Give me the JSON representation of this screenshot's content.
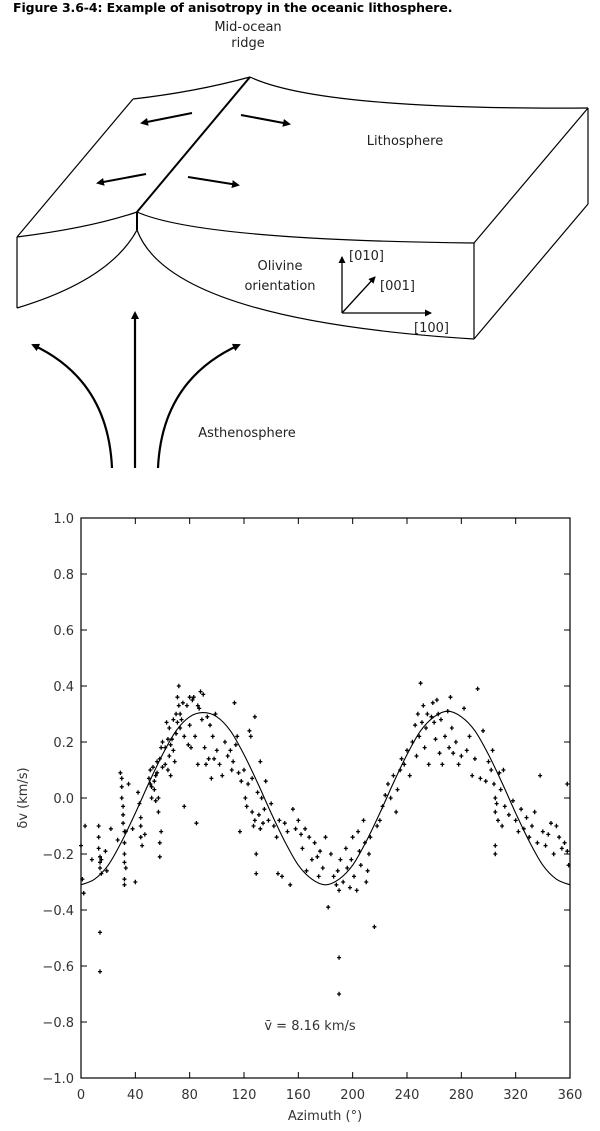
{
  "figure_title": "Figure 3.6-4: Example of anisotropy in the oceanic lithosphere.",
  "diagram": {
    "ridge_label": [
      "Mid-ocean",
      "ridge"
    ],
    "lithosphere_label": "Lithosphere",
    "olivine_label": [
      "Olivine",
      "orientation"
    ],
    "axis_010": "[010]",
    "axis_001": "[001]",
    "axis_100": "[100]",
    "asthenosphere_label": "Asthenosphere"
  },
  "chart_data": {
    "type": "scatter",
    "title": "",
    "xlabel": "Azimuth (°)",
    "ylabel": "δv (km/s)",
    "xlim": [
      0,
      360
    ],
    "ylim": [
      -1.0,
      1.0
    ],
    "xticks": [
      "0",
      "40",
      "80",
      "120",
      "160",
      "200",
      "240",
      "280",
      "320",
      "360"
    ],
    "yticks": [
      "1.0",
      "0.8",
      "0.6",
      "0.4",
      "0.2",
      "0.0",
      "−0.2",
      "−0.4",
      "−0.6",
      "−0.8",
      "−1.0"
    ],
    "annotation": "v̄ = 8.16 km/s",
    "grid": false,
    "fit_curve": {
      "x": [
        0,
        10,
        20,
        30,
        40,
        50,
        60,
        70,
        80,
        90,
        100,
        110,
        120,
        130,
        140,
        150,
        160,
        170,
        180,
        190,
        200,
        210,
        220,
        230,
        240,
        250,
        260,
        270,
        280,
        290,
        300,
        310,
        320,
        330,
        340,
        350,
        360
      ],
      "y": [
        -0.31,
        -0.29,
        -0.24,
        -0.155,
        -0.054,
        0.054,
        0.155,
        0.24,
        0.29,
        0.305,
        0.29,
        0.24,
        0.155,
        0.054,
        -0.054,
        -0.155,
        -0.24,
        -0.29,
        -0.31,
        -0.29,
        -0.24,
        -0.155,
        -0.054,
        0.054,
        0.155,
        0.24,
        0.29,
        0.31,
        0.29,
        0.24,
        0.155,
        0.054,
        -0.054,
        -0.155,
        -0.24,
        -0.29,
        -0.31
      ]
    },
    "points": [
      [
        1,
        -0.29
      ],
      [
        2,
        -0.34
      ],
      [
        3,
        -0.1
      ],
      [
        0,
        -0.17
      ],
      [
        8,
        -0.22
      ],
      [
        13,
        -0.1
      ],
      [
        13,
        -0.14
      ],
      [
        13,
        -0.18
      ],
      [
        14,
        -0.21
      ],
      [
        14,
        -0.23
      ],
      [
        14,
        -0.25
      ],
      [
        15,
        -0.27
      ],
      [
        15,
        -0.22
      ],
      [
        18,
        -0.19
      ],
      [
        19,
        -0.26
      ],
      [
        14,
        -0.48
      ],
      [
        14,
        -0.62
      ],
      [
        22,
        -0.11
      ],
      [
        27,
        -0.15
      ],
      [
        29,
        0.09
      ],
      [
        30,
        0.07
      ],
      [
        30,
        0.04
      ],
      [
        30,
        0.0
      ],
      [
        31,
        -0.03
      ],
      [
        31,
        -0.06
      ],
      [
        31,
        -0.09
      ],
      [
        32,
        -0.12
      ],
      [
        32,
        -0.16
      ],
      [
        32,
        -0.2
      ],
      [
        32,
        -0.23
      ],
      [
        33,
        -0.25
      ],
      [
        32,
        -0.29
      ],
      [
        32,
        -0.31
      ],
      [
        33,
        -0.12
      ],
      [
        35,
        0.05
      ],
      [
        38,
        -0.11
      ],
      [
        40,
        -0.3
      ],
      [
        42,
        0.02
      ],
      [
        43,
        -0.02
      ],
      [
        44,
        -0.07
      ],
      [
        44,
        -0.1
      ],
      [
        44,
        -0.14
      ],
      [
        45,
        -0.17
      ],
      [
        47,
        -0.13
      ],
      [
        50,
        0.07
      ],
      [
        51,
        0.1
      ],
      [
        51,
        0.05
      ],
      [
        52,
        0.04
      ],
      [
        52,
        0.0
      ],
      [
        53,
        0.11
      ],
      [
        54,
        0.06
      ],
      [
        54,
        0.03
      ],
      [
        55,
        0.08
      ],
      [
        55,
        -0.01
      ],
      [
        56,
        0.13
      ],
      [
        56,
        0.09
      ],
      [
        57,
        0.0
      ],
      [
        57,
        -0.05
      ],
      [
        58,
        -0.16
      ],
      [
        58,
        -0.21
      ],
      [
        58,
        0.14
      ],
      [
        59,
        0.18
      ],
      [
        60,
        0.2
      ],
      [
        60,
        0.11
      ],
      [
        59,
        -0.12
      ],
      [
        62,
        0.12
      ],
      [
        62,
        0.18
      ],
      [
        63,
        0.27
      ],
      [
        64,
        0.21
      ],
      [
        64,
        0.1
      ],
      [
        65,
        0.25
      ],
      [
        65,
        0.15
      ],
      [
        66,
        0.19
      ],
      [
        66,
        0.08
      ],
      [
        67,
        0.21
      ],
      [
        68,
        0.28
      ],
      [
        68,
        0.17
      ],
      [
        69,
        0.13
      ],
      [
        70,
        0.3
      ],
      [
        70,
        0.23
      ],
      [
        71,
        0.36
      ],
      [
        71,
        0.27
      ],
      [
        72,
        0.33
      ],
      [
        72,
        0.4
      ],
      [
        73,
        0.3
      ],
      [
        73,
        0.25
      ],
      [
        74,
        0.28
      ],
      [
        75,
        0.34
      ],
      [
        76,
        0.22
      ],
      [
        76,
        -0.03
      ],
      [
        78,
        0.33
      ],
      [
        79,
        0.19
      ],
      [
        80,
        0.36
      ],
      [
        80,
        0.26
      ],
      [
        81,
        0.18
      ],
      [
        82,
        0.35
      ],
      [
        83,
        0.36
      ],
      [
        84,
        0.22
      ],
      [
        85,
        -0.09
      ],
      [
        86,
        0.33
      ],
      [
        86,
        0.12
      ],
      [
        87,
        0.32
      ],
      [
        88,
        0.38
      ],
      [
        89,
        0.28
      ],
      [
        90,
        0.37
      ],
      [
        91,
        0.18
      ],
      [
        92,
        0.12
      ],
      [
        93,
        0.29
      ],
      [
        94,
        0.14
      ],
      [
        95,
        0.26
      ],
      [
        96,
        0.07
      ],
      [
        97,
        0.22
      ],
      [
        98,
        0.14
      ],
      [
        99,
        0.3
      ],
      [
        100,
        0.17
      ],
      [
        102,
        0.12
      ],
      [
        104,
        0.08
      ],
      [
        106,
        0.2
      ],
      [
        108,
        0.15
      ],
      [
        110,
        0.17
      ],
      [
        111,
        0.1
      ],
      [
        112,
        0.13
      ],
      [
        113,
        0.34
      ],
      [
        114,
        0.19
      ],
      [
        115,
        0.22
      ],
      [
        116,
        0.09
      ],
      [
        117,
        -0.12
      ],
      [
        118,
        0.06
      ],
      [
        120,
        0.1
      ],
      [
        121,
        0.0
      ],
      [
        122,
        -0.03
      ],
      [
        123,
        0.05
      ],
      [
        124,
        0.24
      ],
      [
        125,
        0.22
      ],
      [
        126,
        0.07
      ],
      [
        126,
        -0.05
      ],
      [
        127,
        -0.1
      ],
      [
        128,
        0.29
      ],
      [
        128,
        -0.08
      ],
      [
        129,
        -0.2
      ],
      [
        129,
        -0.27
      ],
      [
        130,
        0.02
      ],
      [
        131,
        -0.06
      ],
      [
        132,
        0.13
      ],
      [
        132,
        -0.11
      ],
      [
        133,
        0.0
      ],
      [
        134,
        -0.09
      ],
      [
        135,
        -0.04
      ],
      [
        136,
        0.06
      ],
      [
        138,
        -0.08
      ],
      [
        140,
        -0.02
      ],
      [
        142,
        -0.1
      ],
      [
        144,
        -0.14
      ],
      [
        145,
        -0.27
      ],
      [
        146,
        -0.08
      ],
      [
        148,
        -0.28
      ],
      [
        150,
        -0.09
      ],
      [
        152,
        -0.12
      ],
      [
        154,
        -0.31
      ],
      [
        156,
        -0.04
      ],
      [
        158,
        -0.11
      ],
      [
        160,
        -0.08
      ],
      [
        162,
        -0.13
      ],
      [
        163,
        -0.18
      ],
      [
        165,
        -0.11
      ],
      [
        166,
        -0.26
      ],
      [
        168,
        -0.14
      ],
      [
        170,
        -0.22
      ],
      [
        172,
        -0.16
      ],
      [
        174,
        -0.21
      ],
      [
        175,
        -0.28
      ],
      [
        176,
        -0.19
      ],
      [
        178,
        -0.25
      ],
      [
        180,
        -0.14
      ],
      [
        182,
        -0.39
      ],
      [
        184,
        -0.2
      ],
      [
        186,
        -0.28
      ],
      [
        188,
        -0.31
      ],
      [
        189,
        -0.26
      ],
      [
        190,
        -0.33
      ],
      [
        190,
        -0.57
      ],
      [
        190,
        -0.7
      ],
      [
        191,
        -0.22
      ],
      [
        193,
        -0.3
      ],
      [
        195,
        -0.18
      ],
      [
        196,
        -0.25
      ],
      [
        198,
        -0.32
      ],
      [
        199,
        -0.22
      ],
      [
        200,
        -0.14
      ],
      [
        201,
        -0.28
      ],
      [
        203,
        -0.33
      ],
      [
        204,
        -0.12
      ],
      [
        205,
        -0.19
      ],
      [
        206,
        -0.24
      ],
      [
        208,
        -0.08
      ],
      [
        209,
        -0.16
      ],
      [
        210,
        -0.3
      ],
      [
        211,
        -0.26
      ],
      [
        212,
        -0.2
      ],
      [
        213,
        -0.14
      ],
      [
        216,
        -0.46
      ],
      [
        218,
        -0.1
      ],
      [
        220,
        -0.08
      ],
      [
        222,
        -0.03
      ],
      [
        224,
        0.01
      ],
      [
        226,
        0.05
      ],
      [
        228,
        0.0
      ],
      [
        230,
        0.08
      ],
      [
        232,
        -0.05
      ],
      [
        233,
        0.03
      ],
      [
        235,
        0.1
      ],
      [
        236,
        0.14
      ],
      [
        238,
        0.12
      ],
      [
        240,
        0.17
      ],
      [
        242,
        0.08
      ],
      [
        244,
        0.2
      ],
      [
        246,
        0.26
      ],
      [
        247,
        0.15
      ],
      [
        248,
        0.3
      ],
      [
        249,
        0.22
      ],
      [
        250,
        0.41
      ],
      [
        251,
        0.27
      ],
      [
        252,
        0.33
      ],
      [
        253,
        0.18
      ],
      [
        254,
        0.25
      ],
      [
        255,
        0.3
      ],
      [
        256,
        0.12
      ],
      [
        258,
        0.29
      ],
      [
        259,
        0.34
      ],
      [
        260,
        0.27
      ],
      [
        261,
        0.21
      ],
      [
        262,
        0.35
      ],
      [
        263,
        0.3
      ],
      [
        264,
        0.16
      ],
      [
        265,
        0.28
      ],
      [
        266,
        0.12
      ],
      [
        268,
        0.22
      ],
      [
        270,
        0.31
      ],
      [
        271,
        0.18
      ],
      [
        272,
        0.36
      ],
      [
        273,
        0.25
      ],
      [
        274,
        0.16
      ],
      [
        276,
        0.2
      ],
      [
        278,
        0.12
      ],
      [
        280,
        0.15
      ],
      [
        282,
        0.32
      ],
      [
        284,
        0.17
      ],
      [
        286,
        0.22
      ],
      [
        288,
        0.08
      ],
      [
        290,
        0.14
      ],
      [
        292,
        0.39
      ],
      [
        294,
        0.07
      ],
      [
        296,
        0.24
      ],
      [
        298,
        0.06
      ],
      [
        300,
        0.13
      ],
      [
        302,
        0.1
      ],
      [
        303,
        0.17
      ],
      [
        304,
        0.05
      ],
      [
        305,
        0.0
      ],
      [
        305,
        -0.05
      ],
      [
        306,
        -0.02
      ],
      [
        307,
        -0.08
      ],
      [
        308,
        0.09
      ],
      [
        309,
        0.03
      ],
      [
        310,
        -0.1
      ],
      [
        311,
        0.1
      ],
      [
        312,
        -0.03
      ],
      [
        305,
        -0.17
      ],
      [
        305,
        -0.2
      ],
      [
        315,
        -0.06
      ],
      [
        318,
        -0.01
      ],
      [
        320,
        -0.08
      ],
      [
        322,
        -0.12
      ],
      [
        324,
        -0.04
      ],
      [
        326,
        -0.11
      ],
      [
        328,
        -0.07
      ],
      [
        330,
        -0.14
      ],
      [
        332,
        -0.1
      ],
      [
        334,
        -0.05
      ],
      [
        336,
        -0.16
      ],
      [
        338,
        0.08
      ],
      [
        340,
        -0.12
      ],
      [
        342,
        -0.17
      ],
      [
        344,
        -0.13
      ],
      [
        346,
        -0.09
      ],
      [
        348,
        -0.2
      ],
      [
        350,
        -0.1
      ],
      [
        352,
        -0.14
      ],
      [
        354,
        -0.18
      ],
      [
        356,
        -0.16
      ],
      [
        358,
        -0.19
      ],
      [
        359,
        -0.24
      ],
      [
        358,
        0.05
      ]
    ]
  }
}
